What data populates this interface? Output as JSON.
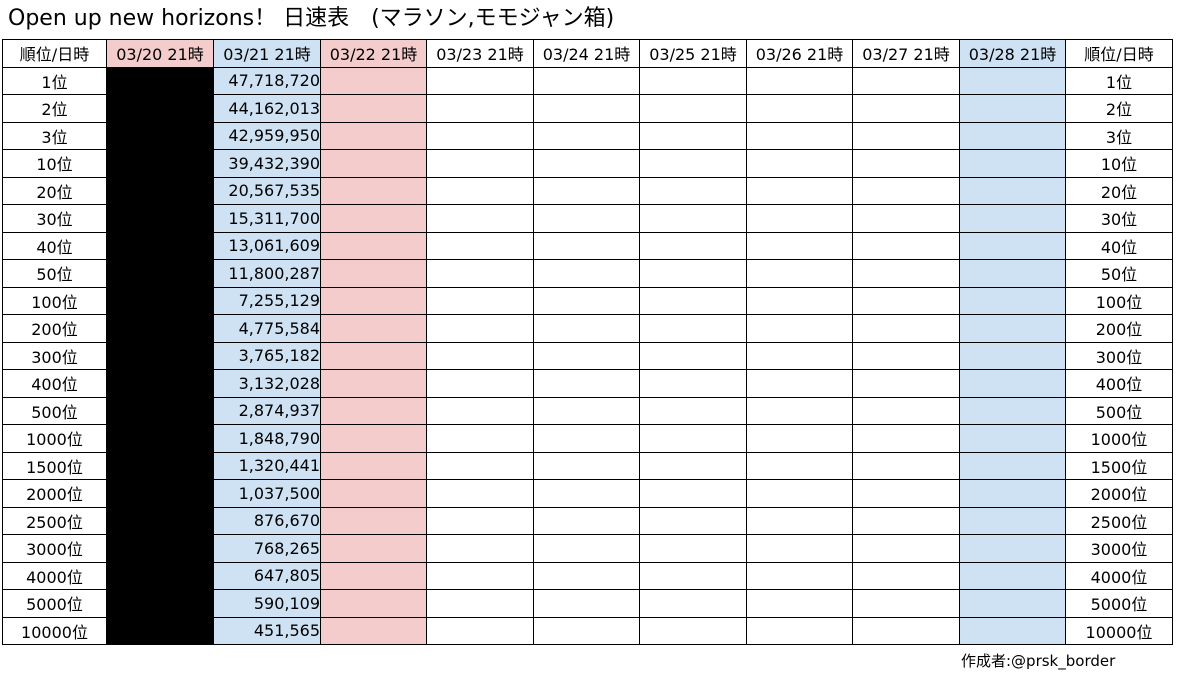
{
  "title": "Open up new horizons！ 日速表　(マラソン,モモジャン箱)",
  "header": {
    "rank_label_left": "順位/日時",
    "rank_label_right": "順位/日時",
    "dates": [
      "03/20 21時",
      "03/21 21時",
      "03/22 21時",
      "03/23 21時",
      "03/24 21時",
      "03/25 21時",
      "03/26 21時",
      "03/27 21時",
      "03/28 21時"
    ]
  },
  "colors": {
    "pink": "#f4cccc",
    "blue": "#cfe2f3",
    "hidden_column": "#000000"
  },
  "rows": [
    {
      "rank": "1位",
      "d0321": "47,718,720"
    },
    {
      "rank": "2位",
      "d0321": "44,162,013"
    },
    {
      "rank": "3位",
      "d0321": "42,959,950"
    },
    {
      "rank": "10位",
      "d0321": "39,432,390"
    },
    {
      "rank": "20位",
      "d0321": "20,567,535"
    },
    {
      "rank": "30位",
      "d0321": "15,311,700"
    },
    {
      "rank": "40位",
      "d0321": "13,061,609"
    },
    {
      "rank": "50位",
      "d0321": "11,800,287"
    },
    {
      "rank": "100位",
      "d0321": "7,255,129"
    },
    {
      "rank": "200位",
      "d0321": "4,775,584"
    },
    {
      "rank": "300位",
      "d0321": "3,765,182"
    },
    {
      "rank": "400位",
      "d0321": "3,132,028"
    },
    {
      "rank": "500位",
      "d0321": "2,874,937"
    },
    {
      "rank": "1000位",
      "d0321": "1,848,790"
    },
    {
      "rank": "1500位",
      "d0321": "1,320,441"
    },
    {
      "rank": "2000位",
      "d0321": "1,037,500"
    },
    {
      "rank": "2500位",
      "d0321": "876,670"
    },
    {
      "rank": "3000位",
      "d0321": "768,265"
    },
    {
      "rank": "4000位",
      "d0321": "647,805"
    },
    {
      "rank": "5000位",
      "d0321": "590,109"
    },
    {
      "rank": "10000位",
      "d0321": "451,565"
    }
  ],
  "credit": "作成者:@prsk_border"
}
